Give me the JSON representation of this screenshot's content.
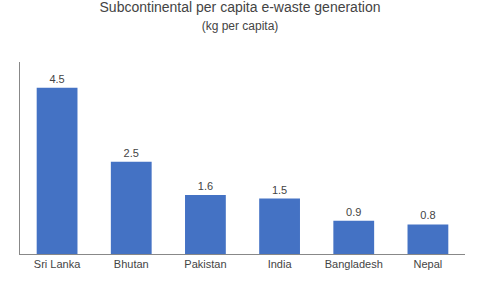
{
  "chart_data": {
    "type": "bar",
    "title": "Subcontinental per capita e-waste generation",
    "subtitle": "(kg per capita)",
    "categories": [
      "Sri Lanka",
      "Bhutan",
      "Pakistan",
      "India",
      "Bangladesh",
      "Nepal"
    ],
    "values": [
      4.5,
      2.5,
      1.6,
      1.5,
      0.9,
      0.8
    ],
    "color": "#4472C4",
    "ylim": [
      0,
      5.2
    ],
    "grid": false,
    "data_labels": true,
    "tick_labels": "x"
  }
}
